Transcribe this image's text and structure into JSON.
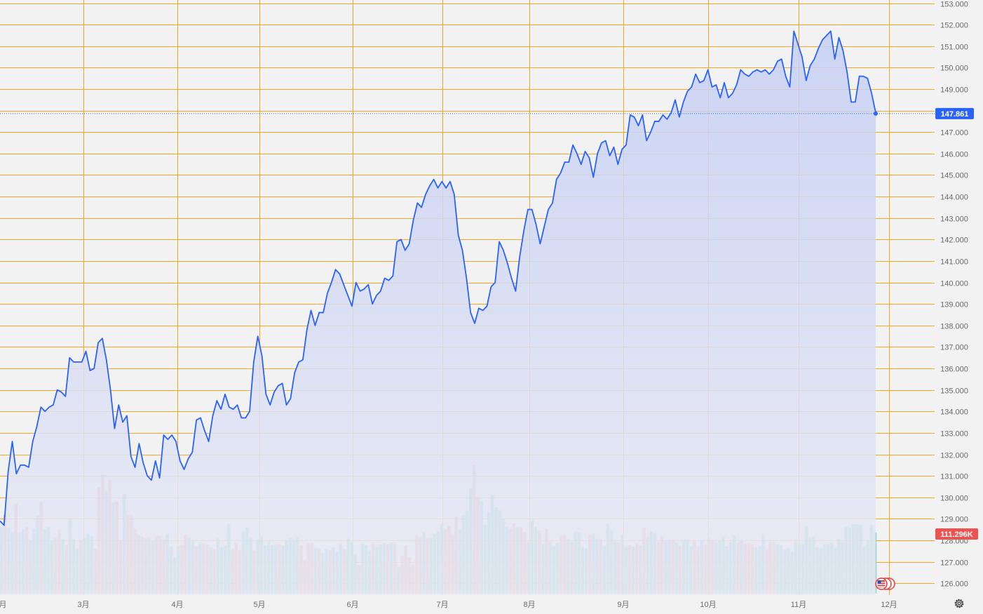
{
  "chart_data": {
    "type": "area",
    "series": [
      {
        "kind": "area",
        "y": [
          128.9,
          128.7,
          131.2,
          132.6,
          131.1,
          131.5,
          131.5,
          131.4,
          132.6,
          133.3,
          134.2,
          134.0,
          134.2,
          134.3,
          135.0,
          134.9,
          134.7,
          136.5,
          136.3,
          136.3,
          136.3,
          136.8,
          135.9,
          136.0,
          137.2,
          137.4,
          136.4,
          135.0,
          133.2,
          134.3,
          133.5,
          133.8,
          131.9,
          131.4,
          132.5,
          131.6,
          131.0,
          130.8,
          131.7,
          130.9,
          132.9,
          132.7,
          132.9,
          132.6,
          131.7,
          131.3,
          131.8,
          132.1,
          133.6,
          133.7,
          133.1,
          132.6,
          133.8,
          134.5,
          134.1,
          134.8,
          134.2,
          134.1,
          134.3,
          133.7,
          133.7,
          134.0,
          136.3,
          137.5,
          136.6,
          134.8,
          134.3,
          134.9,
          135.2,
          135.3,
          134.3,
          134.6,
          135.8,
          136.3,
          136.4,
          137.8,
          138.7,
          138.0,
          138.6,
          138.6,
          139.5,
          140.0,
          140.6,
          140.4,
          139.9,
          139.4,
          138.9,
          140.0,
          139.6,
          139.7,
          139.9,
          139.0,
          139.4,
          139.6,
          140.2,
          140.1,
          140.3,
          141.9,
          142.0,
          141.5,
          141.8,
          142.9,
          143.7,
          143.5,
          144.1,
          144.5,
          144.8,
          144.4,
          144.7,
          144.4,
          144.7,
          144.1,
          142.2,
          141.5,
          140.2,
          138.6,
          138.1,
          138.8,
          138.7,
          138.9,
          139.8,
          140.0,
          141.9,
          141.5,
          140.9,
          140.2,
          139.6,
          141.2,
          142.4,
          143.4,
          143.4,
          142.7,
          141.8,
          142.6,
          143.4,
          143.7,
          144.8,
          145.1,
          145.6,
          145.6,
          146.4,
          146.0,
          145.5,
          146.1,
          145.8,
          144.9,
          146.0,
          146.5,
          146.6,
          145.9,
          146.3,
          145.5,
          146.2,
          146.4,
          147.8,
          147.7,
          147.3,
          147.8,
          146.6,
          147.0,
          147.5,
          147.5,
          147.8,
          147.6,
          147.9,
          148.5,
          147.7,
          148.4,
          148.9,
          149.1,
          149.7,
          149.3,
          149.4,
          149.9,
          149.1,
          149.2,
          148.6,
          149.3,
          148.6,
          148.8,
          149.2,
          149.9,
          149.7,
          149.6,
          149.8,
          149.9,
          149.8,
          149.9,
          149.7,
          149.9,
          150.3,
          150.4,
          149.6,
          149.1,
          151.7,
          151.1,
          150.5,
          149.4,
          150.1,
          150.4,
          150.9,
          151.3,
          151.5,
          151.7,
          150.4,
          151.4,
          150.8,
          149.8,
          148.4,
          148.4,
          149.6,
          149.6,
          149.5,
          148.8,
          147.9
        ],
        "color": "#2962ff"
      },
      {
        "kind": "volume",
        "values": [
          46.5,
          54.8,
          45.7,
          42.8,
          62.9,
          42.8,
          44.4,
          46.6,
          36.6,
          45.0,
          54.6,
          63.7,
          44.7,
          46.3,
          37.2,
          38.9,
          44.2,
          37.9,
          33.8,
          52.4,
          38.3,
          31.3,
          36.7,
          38.6,
          41.7,
          40.0,
          31.0,
          74.1,
          82.7,
          71.3,
          79.1,
          63.3,
          64.1,
          37.3,
          69.1,
          54.7,
          54.9,
          45.3,
          40.5,
          39.7,
          38.5,
          39.2,
          37.1,
          40.3,
          40.4,
          37.7,
          41.3,
          32.7,
          24.9,
          32.8,
          33.6,
          41.0,
          39.1,
          36.4,
          33.1,
          35.6,
          35.0,
          34.1,
          32.3,
          30.7,
          38.6,
          32.3,
          33.7,
          48.3,
          31.3,
          34.9,
          30.2,
          43.2,
          46.0,
          39.1,
          29.9,
          37.6,
          40.2,
          33.6,
          36.1,
          33.8,
          33.8,
          34.4,
          33.4,
          37.0,
          39.0,
          37.6,
          39.5,
          33.5,
          23.5,
          35.2,
          35.3,
          31.9,
          31.0,
          28.3,
          31.1,
          30.5,
          32.3,
          29.0,
          34.8,
          31.1,
          38.4,
          35.6,
          27.7,
          20.1,
          34.7,
          33.7,
          29.8,
          35.5,
          32.3,
          34.3,
          35.2,
          34.5,
          35.5,
          35.5,
          18.4,
          26.6,
          33.4,
          25.4,
          20.2,
          40.6,
          39.1,
          43.1,
          38.5,
          39.0,
          41.5,
          43.5,
          48.3,
          44.5,
          47.2,
          40.4,
          53.5,
          44.6,
          54.4,
          57.7,
          73.4,
          89.7,
          67.3,
          64.3,
          47.8,
          56.6,
          68.4,
          59.9,
          58.0,
          52.2,
          46.6,
          45.1,
          48.8,
          46.1,
          46.0,
          42.8,
          36.0,
          50.9,
          46.3,
          44.0,
          34.6,
          45.1,
          36.3,
          32.6,
          35.1,
          40.3,
          40.8,
          38.0,
          36.0,
          43.3,
          42.7,
          32.5,
          31.5,
          41.0,
          42.2,
          38.3,
          38.0,
          32.9,
          48.4,
          44.2,
          35.8,
          35.6,
          41.0,
          32.8,
          33.6,
          32.5,
          35.1,
          33.4,
          45.6,
          39.6,
          43.4,
          41.9,
          35.9,
          40.0,
          36.3,
          37.4,
          37.4,
          35.5,
          32.7,
          37.3,
          37.5,
          32.8,
          36.3,
          32.6,
          37.2,
          34.1,
          39.0,
          37.5,
          35.3,
          36.9,
          39.9,
          32.7,
          35.6,
          40.6,
          35.6,
          36.9,
          34.6,
          35.3,
          34.5,
          32.0,
          33.0,
          41.5,
          31.3,
          35.9,
          35.7,
          34.0,
          33.8,
          30.4,
          31.8,
          29.2,
          36.4,
          35.1,
          34.7,
          47.0,
          39.3,
          39.8,
          32.4,
          31.8,
          34.2,
          34.2,
          35.4,
          31.8,
          38.0,
          36.0,
          46.3,
          45.9,
          48.3,
          48.1,
          47.9,
          32.6,
          36.8,
          47.8,
          42.5
        ],
        "colors": {
          "up": "#7fcbbf",
          "down": "#f09a9a"
        }
      }
    ],
    "x_labels": [
      "月",
      "3月",
      "4月",
      "5月",
      "6月",
      "7月",
      "8月",
      "9月",
      "10月",
      "11月",
      "12月"
    ],
    "y_ticks": [
      "126.000",
      "127.000",
      "128.000",
      "129.000",
      "130.000",
      "131.000",
      "132.000",
      "133.000",
      "134.000",
      "135.000",
      "136.000",
      "137.000",
      "138.000",
      "139.000",
      "140.000",
      "141.000",
      "142.000",
      "143.000",
      "144.000",
      "145.000",
      "146.000",
      "147.000",
      "148.000",
      "149.000",
      "150.000",
      "151.000",
      "152.000",
      "153.000"
    ],
    "ylim": [
      125.55,
      153.1
    ],
    "last_price": "147.861",
    "last_volume": "111.296K",
    "grid": true,
    "colors": {
      "grid": "#f5a623",
      "line": "#2962ff",
      "area_top": "#c5cff5",
      "area_bottom": "#e8eaf4",
      "price_badge": "#2962ff",
      "volume_badge": "#ef5350"
    }
  },
  "ui": {
    "settings_icon": "gear-icon",
    "flag_icon": "us-flag-icon"
  }
}
